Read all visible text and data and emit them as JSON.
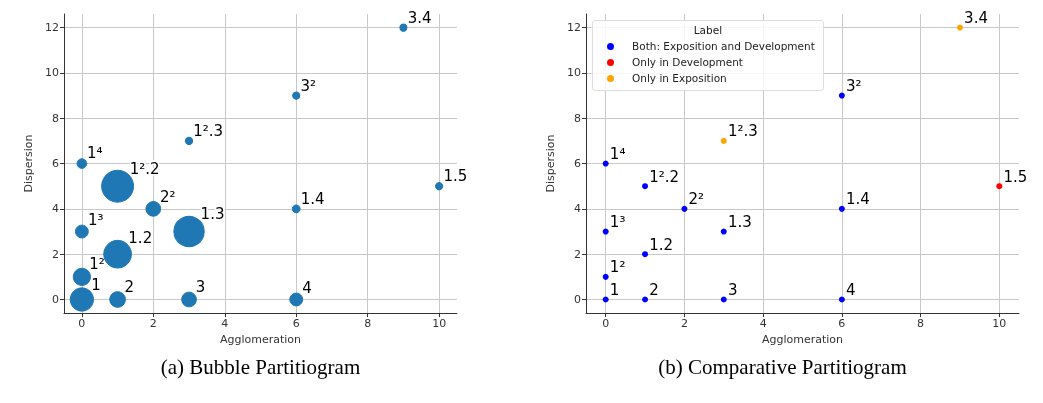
{
  "chart_data": [
    {
      "type": "bubble",
      "title": "(a) Bubble Partitiogram",
      "xlabel": "Agglomeration",
      "ylabel": "Dispersion",
      "color": "#1f77b4",
      "x": [
        0,
        1,
        3,
        6,
        0,
        1,
        0,
        3,
        2,
        6,
        1,
        0,
        3,
        6,
        9,
        10
      ],
      "values": [
        0,
        0,
        0,
        0,
        1,
        2,
        3,
        3,
        4,
        4,
        5,
        6,
        7,
        9,
        12,
        5
      ],
      "sizes": [
        0.53,
        0.24,
        0.21,
        0.16,
        0.29,
        0.75,
        0.16,
        0.9,
        0.21,
        0.06,
        1,
        0.09,
        0.05,
        0.05,
        0.05,
        0.05
      ],
      "xlim": [
        -0.5,
        10.5
      ],
      "ylim": [
        -0.6,
        12.6
      ],
      "xticks": [
        0,
        2,
        4,
        6,
        8,
        10
      ],
      "yticks": [
        0,
        2,
        4,
        6,
        8,
        10,
        12
      ],
      "grid": true,
      "marker": "circle",
      "annotations": [
        {
          "text": "1",
          "x": 0,
          "y": 0
        },
        {
          "text": "2",
          "x": 1,
          "y": 0
        },
        {
          "text": "3",
          "x": 3,
          "y": 0
        },
        {
          "text": "4",
          "x": 6,
          "y": 0
        },
        {
          "text": "1²",
          "x": 0,
          "y": 1
        },
        {
          "text": "1.2",
          "x": 1,
          "y": 2
        },
        {
          "text": "1³",
          "x": 0,
          "y": 3
        },
        {
          "text": "1.3",
          "x": 3,
          "y": 3
        },
        {
          "text": "2²",
          "x": 2,
          "y": 4
        },
        {
          "text": "1.4",
          "x": 6,
          "y": 4
        },
        {
          "text": "1².2",
          "x": 1,
          "y": 5
        },
        {
          "text": "1⁴",
          "x": 0,
          "y": 6
        },
        {
          "text": "1².3",
          "x": 3,
          "y": 7
        },
        {
          "text": "3²",
          "x": 6,
          "y": 9
        },
        {
          "text": "3.4",
          "x": 9,
          "y": 12
        },
        {
          "text": "1.5",
          "x": 10,
          "y": 5
        }
      ]
    },
    {
      "type": "scatter",
      "title": "(b) Comparative Partitiogram",
      "xlabel": "Agglomeration",
      "ylabel": "Dispersion",
      "legend_title": "Label",
      "legend": "top left",
      "series": [
        {
          "name": "Both: Exposition and Development",
          "color": "#0000ff",
          "x": [
            0,
            1,
            3,
            6,
            0,
            1,
            0,
            3,
            2,
            6,
            1,
            0,
            6
          ],
          "values": [
            0,
            0,
            0,
            0,
            1,
            2,
            3,
            3,
            4,
            4,
            5,
            6,
            9
          ]
        },
        {
          "name": "Only in Development",
          "color": "#ff0000",
          "x": [
            10
          ],
          "values": [
            5
          ]
        },
        {
          "name": "Only in Exposition",
          "color": "#ffa500",
          "x": [
            3,
            9
          ],
          "values": [
            7,
            12
          ]
        }
      ],
      "xlim": [
        -0.5,
        10.5
      ],
      "ylim": [
        -0.6,
        12.6
      ],
      "xticks": [
        0,
        2,
        4,
        6,
        8,
        10
      ],
      "yticks": [
        0,
        2,
        4,
        6,
        8,
        10,
        12
      ],
      "grid": true,
      "marker": "circle",
      "annotations": [
        {
          "text": "1",
          "x": 0,
          "y": 0
        },
        {
          "text": "2",
          "x": 1,
          "y": 0
        },
        {
          "text": "3",
          "x": 3,
          "y": 0
        },
        {
          "text": "4",
          "x": 6,
          "y": 0
        },
        {
          "text": "1²",
          "x": 0,
          "y": 1
        },
        {
          "text": "1.2",
          "x": 1,
          "y": 2
        },
        {
          "text": "1³",
          "x": 0,
          "y": 3
        },
        {
          "text": "1.3",
          "x": 3,
          "y": 3
        },
        {
          "text": "2²",
          "x": 2,
          "y": 4
        },
        {
          "text": "1.4",
          "x": 6,
          "y": 4
        },
        {
          "text": "1².2",
          "x": 1,
          "y": 5
        },
        {
          "text": "1⁴",
          "x": 0,
          "y": 6
        },
        {
          "text": "1².3",
          "x": 3,
          "y": 7
        },
        {
          "text": "3²",
          "x": 6,
          "y": 9
        },
        {
          "text": "3.4",
          "x": 9,
          "y": 12
        },
        {
          "text": "1.5",
          "x": 10,
          "y": 5
        }
      ]
    }
  ]
}
